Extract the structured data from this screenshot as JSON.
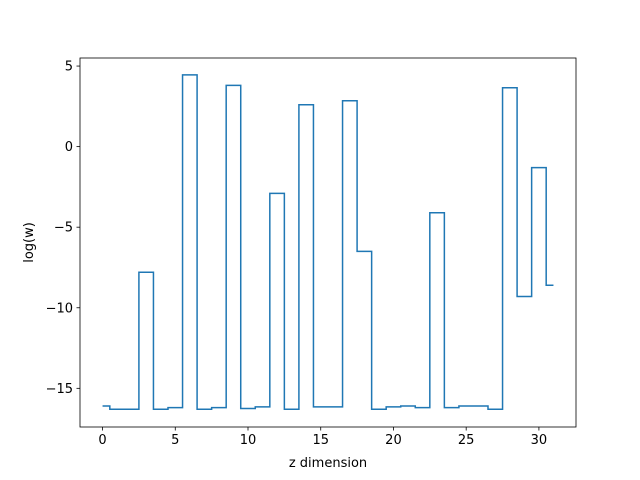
{
  "chart_data": {
    "type": "line",
    "drawstyle": "steps-mid",
    "xlabel": "z dimension",
    "ylabel": "log(w)",
    "xlim": [
      -1.55,
      32.55
    ],
    "ylim": [
      -17.4,
      5.5
    ],
    "xticks": [
      0,
      5,
      10,
      15,
      20,
      25,
      30
    ],
    "yticks": [
      5,
      0,
      -5,
      -10,
      -15
    ],
    "ytick_labels": [
      "5",
      "0",
      "−5",
      "−10",
      "−15"
    ],
    "grid": false,
    "series": [
      {
        "color": "#1f77b4",
        "x": [
          0,
          1,
          2,
          3,
          4,
          5,
          6,
          7,
          8,
          9,
          10,
          11,
          12,
          13,
          14,
          15,
          16,
          17,
          18,
          19,
          20,
          21,
          22,
          23,
          24,
          25,
          26,
          27,
          28,
          29,
          30,
          31
        ],
        "y": [
          -16.1,
          -16.3,
          -16.3,
          -7.8,
          -16.3,
          -16.2,
          4.45,
          -16.3,
          -16.2,
          3.8,
          -16.25,
          -16.15,
          -2.9,
          -16.3,
          2.6,
          -16.15,
          -16.15,
          2.85,
          -6.5,
          -16.3,
          -16.15,
          -16.1,
          -16.2,
          -4.1,
          -16.2,
          -16.1,
          -16.1,
          -16.3,
          3.65,
          -9.3,
          -1.3,
          -8.6
        ]
      }
    ]
  }
}
